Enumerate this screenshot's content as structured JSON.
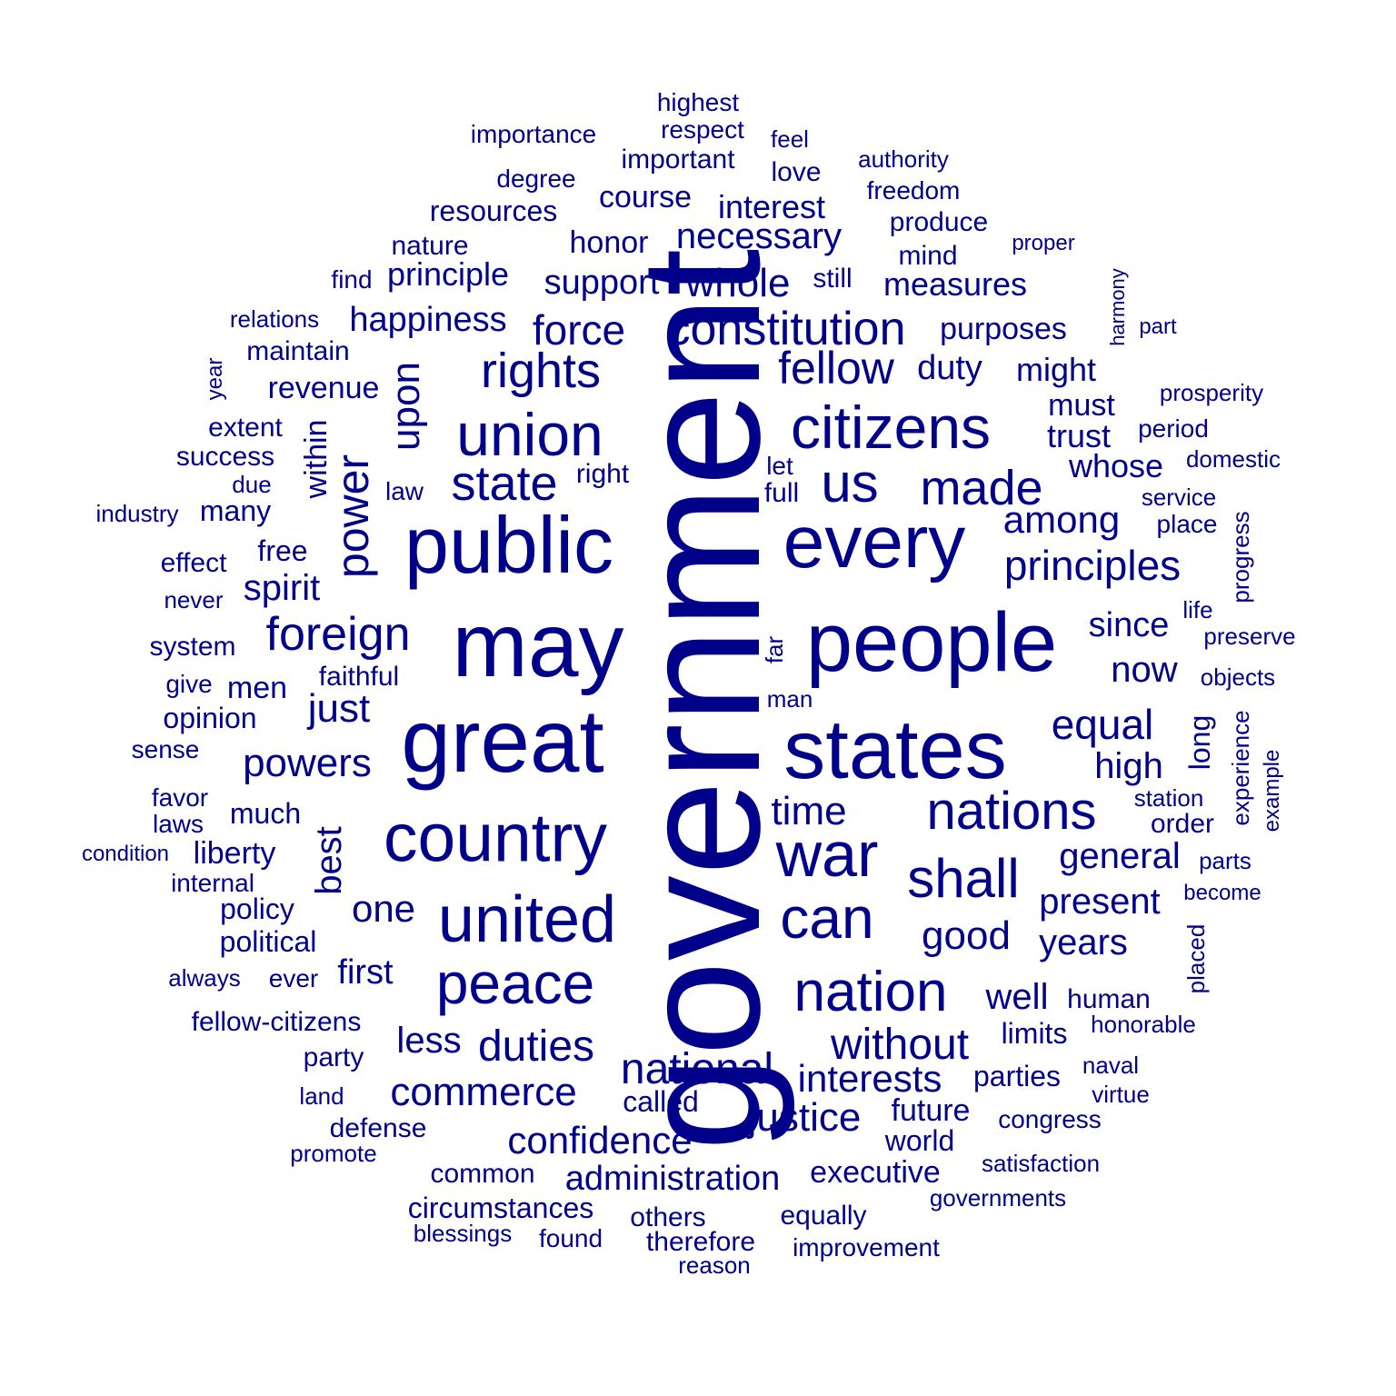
{
  "word_color": "#00008b",
  "words": [
    "government",
    "great",
    "may",
    "states",
    "people",
    "public",
    "every",
    "country",
    "united",
    "war",
    "union",
    "citizens",
    "peace",
    "can",
    "nation",
    "us",
    "rights",
    "constitution",
    "state",
    "made",
    "nations",
    "shall",
    "power",
    "foreign",
    "principles",
    "duties",
    "national",
    "commerce",
    "without",
    "confidence",
    "fellow",
    "force",
    "interests",
    "justice",
    "time",
    "powers",
    "equal",
    "administration",
    "good",
    "general",
    "present",
    "since",
    "one",
    "upon",
    "years",
    "first",
    "among",
    "just",
    "necessary",
    "whole",
    "spirit",
    "now",
    "high",
    "within",
    "best",
    "duty",
    "might",
    "measures",
    "happiness",
    "support",
    "principle",
    "interest",
    "course",
    "executive",
    "future",
    "circumstances",
    "honor",
    "revenue",
    "purposes",
    "less",
    "opinion",
    "well",
    "liberty",
    "parties",
    "much",
    "limits",
    "called",
    "free",
    "world",
    "political",
    "men",
    "trust",
    "must",
    "whose",
    "produce",
    "mind",
    "resources",
    "equally",
    "others",
    "common",
    "policy",
    "faithful",
    "importance",
    "respect",
    "therefore",
    "human",
    "long",
    "freedom",
    "system",
    "improvement",
    "important",
    "congress",
    "highest",
    "maintain",
    "defense",
    "degree",
    "order",
    "found",
    "nature",
    "effect",
    "success",
    "honorable",
    "experience",
    "fellow-citizens",
    "right",
    "blessings",
    "many",
    "extent",
    "governments",
    "authority",
    "party",
    "love",
    "preserve",
    "sense",
    "ever",
    "full",
    "relations",
    "progress",
    "naval",
    "prosperity",
    "satisfaction",
    "station",
    "laws",
    "internal",
    "period",
    "placed",
    "harmony",
    "law",
    "reason",
    "always",
    "still",
    "far",
    "favor",
    "land",
    "domestic",
    "condition",
    "life",
    "proper",
    "man",
    "objects",
    "place",
    "become",
    "service",
    "virtue",
    "feel",
    "parts",
    "never",
    "let",
    "find",
    "part",
    "promote",
    "give",
    "example",
    "due",
    "industry",
    "year"
  ]
}
